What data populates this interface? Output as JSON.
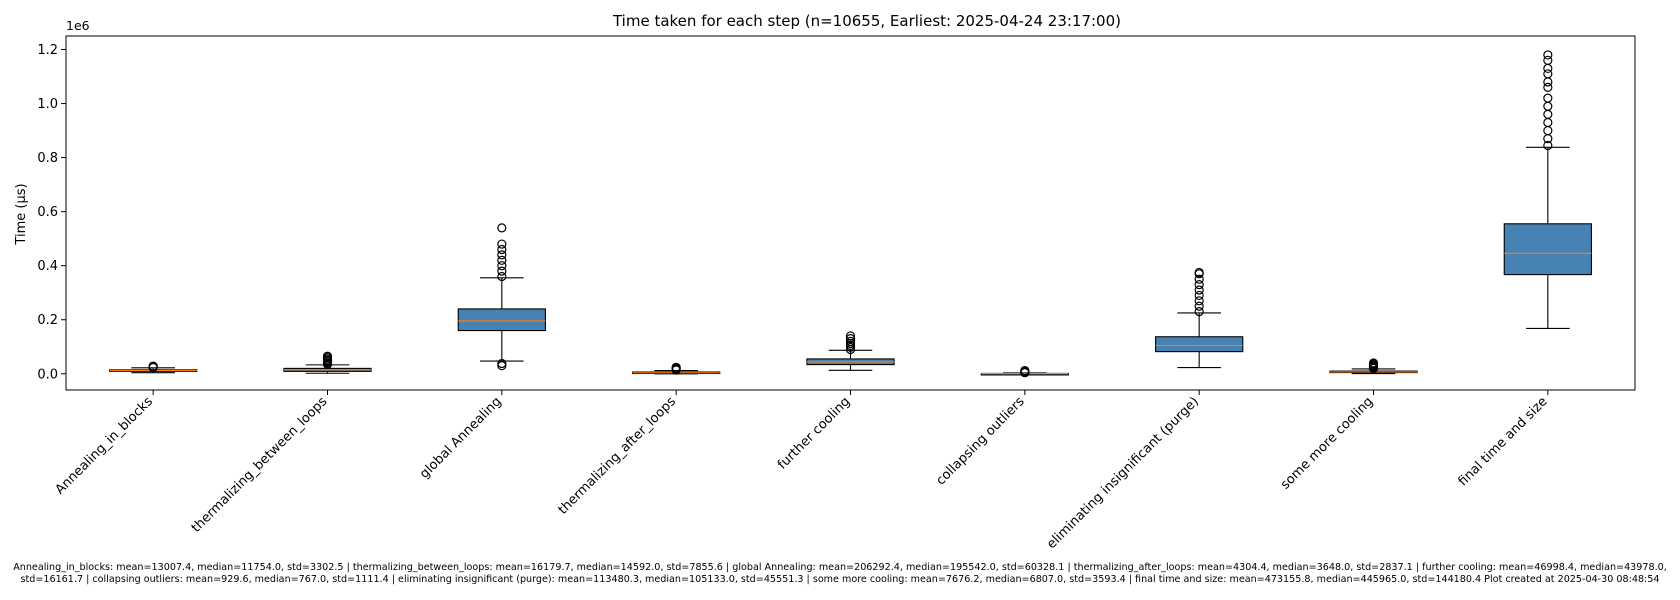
{
  "chart_data": {
    "type": "box",
    "title": "Time taken for each step (n=10655, Earliest: 2025-04-24 23:17:00)",
    "ylabel": "Time (µs)",
    "xlabel": "",
    "y_scale_label": "1e6",
    "ylim": [
      -60000,
      1250000
    ],
    "yticks": [
      0,
      200000,
      400000,
      600000,
      800000,
      1000000,
      1200000
    ],
    "ytick_labels": [
      "0.0",
      "0.2",
      "0.4",
      "0.6",
      "0.8",
      "1.0",
      "1.2"
    ],
    "grid": false,
    "box_color": "#4682b4",
    "median_color": "#ff7f0e",
    "categories": [
      "Annealing_in_blocks",
      "thermalizing_between_loops",
      "global Annealing",
      "thermalizing_after_loops",
      "further cooling",
      "collapsing outliers",
      "eliminating insignificant (purge)",
      "some more cooling",
      "final time and size"
    ],
    "boxes": [
      {
        "whislo": 4000,
        "q1": 10000,
        "median": 11754,
        "q3": 14500,
        "whishi": 22000,
        "fliers": [
          23000,
          25000,
          27000,
          28500
        ]
      },
      {
        "whislo": 2000,
        "q1": 9000,
        "median": 14592,
        "q3": 20000,
        "whishi": 33000,
        "fliers": [
          35000,
          40000,
          45000,
          50000,
          55000,
          60000,
          65000
        ]
      },
      {
        "whislo": 47000,
        "q1": 160000,
        "median": 195542,
        "q3": 240000,
        "whishi": 355000,
        "fliers": [
          30000,
          38000,
          360000,
          380000,
          400000,
          420000,
          440000,
          460000,
          480000,
          540000
        ]
      },
      {
        "whislo": 0,
        "q1": 1500,
        "median": 3648,
        "q3": 6500,
        "whishi": 12000,
        "fliers": [
          14000,
          17000,
          20000,
          24000
        ]
      },
      {
        "whislo": 13000,
        "q1": 34000,
        "median": 43978,
        "q3": 55000,
        "whishi": 87000,
        "fliers": [
          90000,
          98000,
          105000,
          112000,
          120000,
          130000,
          140000
        ]
      },
      {
        "whislo": 0,
        "q1": 200,
        "median": 767,
        "q3": 1300,
        "whishi": 3000,
        "fliers": [
          4000,
          6000,
          8000,
          10000,
          12000
        ]
      },
      {
        "whislo": 23000,
        "q1": 82000,
        "median": 105133,
        "q3": 137000,
        "whishi": 225000,
        "fliers": [
          230000,
          250000,
          270000,
          290000,
          310000,
          330000,
          350000,
          370000,
          375000
        ]
      },
      {
        "whislo": 1000,
        "q1": 4500,
        "median": 6807,
        "q3": 10000,
        "whishi": 18000,
        "fliers": [
          20000,
          24000,
          28000,
          32000,
          36000,
          40000
        ]
      },
      {
        "whislo": 168000,
        "q1": 367000,
        "median": 445965,
        "q3": 555000,
        "whishi": 838000,
        "fliers": [
          845000,
          870000,
          900000,
          930000,
          960000,
          990000,
          1020000,
          1060000,
          1080000,
          1110000,
          1130000,
          1160000,
          1180000
        ]
      }
    ]
  },
  "footer_text": "Annealing_in_blocks: mean=13007.4, median=11754.0, std=3302.5 | thermalizing_between_loops: mean=16179.7, median=14592.0, std=7855.6 | global Annealing: mean=206292.4, median=195542.0, std=60328.1 | thermalizing_after_loops: mean=4304.4, median=3648.0, std=2837.1 | further cooling: mean=46998.4, median=43978.0, std=16161.7 | collapsing outliers: mean=929.6, median=767.0, std=1111.4 | eliminating insignificant (purge): mean=113480.3, median=105133.0, std=45551.3 | some more cooling: mean=7676.2, median=6807.0, std=3593.4 | final time and size: mean=473155.8, median=445965.0, std=144180.4    Plot created at 2025-04-30 08:48:54"
}
